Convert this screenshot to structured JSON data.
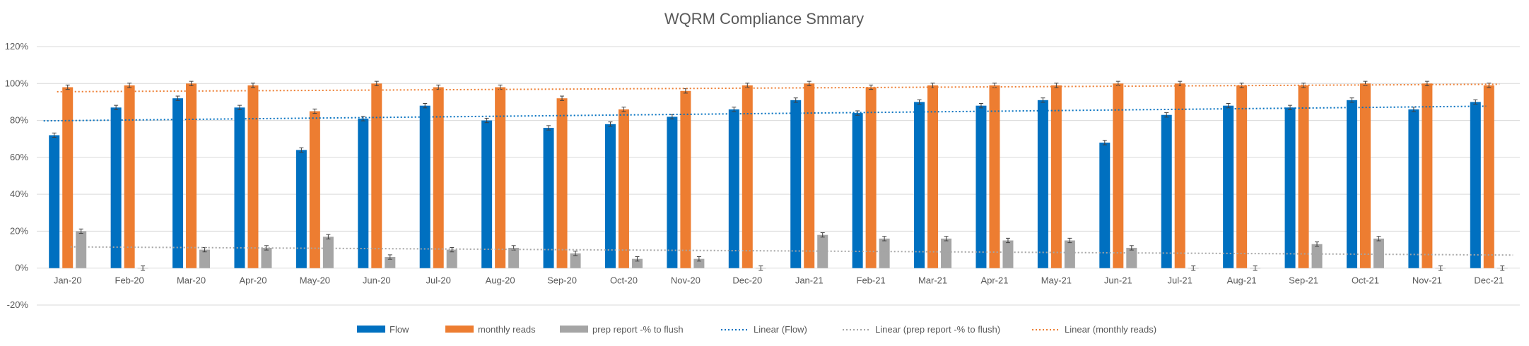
{
  "chart_data": {
    "type": "bar",
    "title": "WQRM Compliance Smmary",
    "categories": [
      "Jan-20",
      "Feb-20",
      "Mar-20",
      "Apr-20",
      "May-20",
      "Jun-20",
      "Jul-20",
      "Aug-20",
      "Sep-20",
      "Oct-20",
      "Nov-20",
      "Dec-20",
      "Jan-21",
      "Feb-21",
      "Mar-21",
      "Apr-21",
      "May-21",
      "Jun-21",
      "Jul-21",
      "Aug-21",
      "Sep-21",
      "Oct-21",
      "Nov-21",
      "Dec-21"
    ],
    "ylim": [
      -0.2,
      1.2
    ],
    "yticks": [
      -0.2,
      0,
      0.2,
      0.4,
      0.6,
      0.8,
      1.0,
      1.2
    ],
    "ytick_labels": [
      "-20%",
      "0%",
      "20%",
      "40%",
      "60%",
      "80%",
      "100%",
      "120%"
    ],
    "grid": true,
    "legend_position": "bottom",
    "series": [
      {
        "name": "Flow",
        "color": "#0070C0",
        "values": [
          0.72,
          0.87,
          0.92,
          0.87,
          0.64,
          0.81,
          0.88,
          0.8,
          0.76,
          0.78,
          0.82,
          0.86,
          0.91,
          0.84,
          0.9,
          0.88,
          0.91,
          0.68,
          0.83,
          0.88,
          0.87,
          0.91,
          0.86,
          0.9
        ]
      },
      {
        "name": "monthly reads",
        "color": "#ED7D31",
        "values": [
          0.98,
          0.99,
          1.0,
          0.99,
          0.85,
          1.0,
          0.98,
          0.98,
          0.92,
          0.86,
          0.96,
          0.99,
          1.0,
          0.98,
          0.99,
          0.99,
          0.99,
          1.0,
          1.0,
          0.99,
          0.99,
          1.0,
          1.0,
          0.99
        ]
      },
      {
        "name": "prep report -% to flush",
        "color": "#A5A5A5",
        "values": [
          0.2,
          0.0,
          0.1,
          0.11,
          0.17,
          0.06,
          0.1,
          0.11,
          0.08,
          0.05,
          0.05,
          0.0,
          0.18,
          0.16,
          0.16,
          0.15,
          0.15,
          0.11,
          0.0,
          0.0,
          0.13,
          0.16,
          0.0,
          0.0
        ]
      }
    ],
    "error_bar": 0.012,
    "trendlines": [
      {
        "name": "Linear (Flow)",
        "color": "#0070C0",
        "series_index": 0
      },
      {
        "name": "Linear (prep report -% to flush)",
        "color": "#A5A5A5",
        "series_index": 2
      },
      {
        "name": "Linear (monthly reads)",
        "color": "#ED7D31",
        "series_index": 1
      }
    ]
  }
}
